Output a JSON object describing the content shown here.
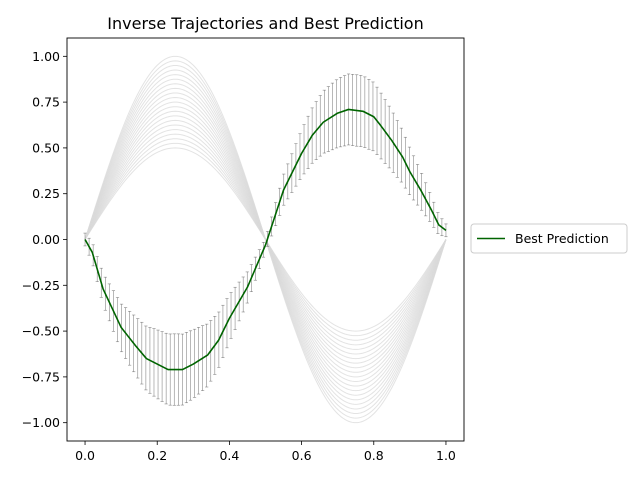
{
  "chart_data": {
    "type": "line",
    "title": "Inverse Trajectories and Best Prediction",
    "xlabel": "",
    "ylabel": "",
    "xlim": [
      -0.05,
      1.05
    ],
    "ylim": [
      -1.1,
      1.1
    ],
    "xticks": [
      0.0,
      0.2,
      0.4,
      0.6,
      0.8,
      1.0
    ],
    "xtick_labels": [
      "0.0",
      "0.2",
      "0.4",
      "0.6",
      "0.8",
      "1.0"
    ],
    "yticks": [
      -1.0,
      -0.75,
      -0.5,
      -0.25,
      0.0,
      0.25,
      0.5,
      0.75,
      1.0
    ],
    "ytick_labels": [
      "−1.00",
      "−0.75",
      "−0.50",
      "−0.25",
      "0.00",
      "0.25",
      "0.50",
      "0.75",
      "1.00"
    ],
    "grid": false,
    "legend_placement": "outside-right",
    "background_trajectories": {
      "function": "amplitude * sin(2*pi*x)",
      "amplitudes": [
        0.5,
        0.525,
        0.55,
        0.575,
        0.6,
        0.625,
        0.65,
        0.675,
        0.7,
        0.725,
        0.75,
        0.775,
        0.8,
        0.825,
        0.85,
        0.875,
        0.9,
        0.925,
        0.95,
        0.975,
        1.0
      ],
      "color": "#d9d9d9"
    },
    "error_band": {
      "x_range": [
        0.0,
        1.0
      ],
      "n_bars": 90,
      "half_width": 0.16,
      "color": "#555555"
    },
    "series": [
      {
        "name": "Best Prediction",
        "color": "#006400",
        "x": [
          0.0,
          0.02,
          0.05,
          0.1,
          0.14,
          0.17,
          0.2,
          0.23,
          0.27,
          0.3,
          0.34,
          0.37,
          0.4,
          0.45,
          0.5,
          0.55,
          0.6,
          0.63,
          0.66,
          0.7,
          0.73,
          0.77,
          0.8,
          0.82,
          0.85,
          0.88,
          0.9,
          0.93,
          0.96,
          0.98,
          1.0
        ],
        "y": [
          0.0,
          -0.07,
          -0.27,
          -0.48,
          -0.58,
          -0.65,
          -0.68,
          -0.71,
          -0.71,
          -0.68,
          -0.63,
          -0.55,
          -0.43,
          -0.26,
          -0.03,
          0.27,
          0.47,
          0.57,
          0.64,
          0.69,
          0.71,
          0.7,
          0.67,
          0.62,
          0.54,
          0.45,
          0.37,
          0.27,
          0.16,
          0.08,
          0.05
        ]
      }
    ]
  }
}
